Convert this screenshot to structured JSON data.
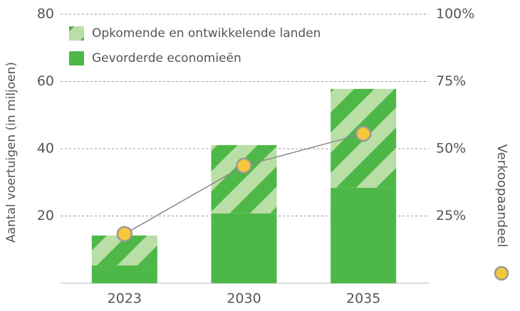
{
  "chart_data": {
    "type": "bar",
    "stacked": true,
    "categories": [
      "2023",
      "2030",
      "2035"
    ],
    "series": [
      {
        "name": "Gevorderde economieën",
        "color": "#4db848",
        "values": [
          5.3,
          20.8,
          28.4
        ]
      },
      {
        "name": "Opkomende en ontwikkelende landen",
        "color": "#4db848",
        "pattern": "hatch",
        "values": [
          8.9,
          20.3,
          29.4
        ]
      },
      {
        "name": "Verkoopaandeel",
        "type": "line",
        "axis": "y2",
        "color": "#f5c83a",
        "values": [
          18.3,
          43.7,
          55.6
        ]
      }
    ],
    "y_label": "Aantal voertuigen (in miljoen)",
    "ylim": [
      0,
      80
    ],
    "yticks": [
      20,
      40,
      60,
      80
    ],
    "y2lim": [
      0,
      100
    ],
    "y2ticks": [
      {
        "value": 25,
        "label": "25%"
      },
      {
        "value": 50,
        "label": "50%"
      },
      {
        "value": 75,
        "label": "75%"
      },
      {
        "value": 100,
        "label": "100%"
      }
    ],
    "grid": true,
    "legend": "upper left"
  }
}
